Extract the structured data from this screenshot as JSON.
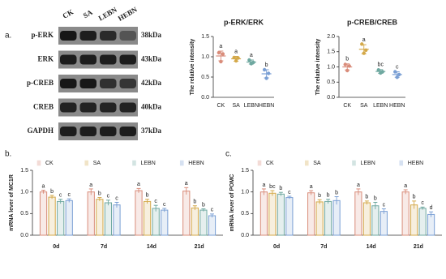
{
  "panel_a": {
    "label": "a.",
    "lanes": [
      "CK",
      "SA",
      "LEBN",
      "HEBN"
    ],
    "rows": [
      {
        "protein": "p-ERK",
        "size": "38kDa"
      },
      {
        "protein": "ERK",
        "size": "43kDa"
      },
      {
        "protein": "p-CREB",
        "size": "42kDa"
      },
      {
        "protein": "CREB",
        "size": "40kDa"
      },
      {
        "protein": "GAPDH",
        "size": "37kDa"
      }
    ]
  },
  "chart_data": [
    {
      "type": "dot",
      "title": "p-ERK/ERK",
      "y_label": "The relative intensity",
      "categories": [
        "CK",
        "SA",
        "LEBN",
        "HEBN"
      ],
      "colors": [
        "#d98c7a",
        "#d4a94a",
        "#6fa8a0",
        "#7a9fd4"
      ],
      "values": [
        1.02,
        0.95,
        0.87,
        0.58
      ],
      "errors": [
        0.12,
        0.06,
        0.05,
        0.1
      ],
      "points": [
        [
          1.1,
          0.88,
          1.07
        ],
        [
          0.98,
          0.9,
          0.97
        ],
        [
          0.92,
          0.83,
          0.86
        ],
        [
          0.68,
          0.47,
          0.59
        ]
      ],
      "letters": [
        "a",
        "a",
        "a",
        "b"
      ],
      "ylim": [
        0,
        1.5
      ],
      "yticks": [
        {
          "value": 0,
          "label": "0.0"
        },
        {
          "value": 0.5,
          "label": "0.5"
        },
        {
          "value": 1,
          "label": "1.0"
        },
        {
          "value": 1.5,
          "label": "1.5"
        }
      ]
    },
    {
      "type": "dot",
      "title": "p-CREB/CREB",
      "y_label": "The relative intensity",
      "categories": [
        "CK",
        "SA",
        "LEBN",
        "HEBN"
      ],
      "colors": [
        "#d98c7a",
        "#d4a94a",
        "#6fa8a0",
        "#7a9fd4"
      ],
      "values": [
        1.0,
        1.58,
        0.85,
        0.75
      ],
      "errors": [
        0.1,
        0.15,
        0.06,
        0.09
      ],
      "points": [
        [
          1.08,
          0.88,
          1.03
        ],
        [
          1.75,
          1.45,
          1.55
        ],
        [
          0.9,
          0.8,
          0.84
        ],
        [
          0.84,
          0.66,
          0.75
        ]
      ],
      "letters": [
        "b",
        "a",
        "bc",
        "c"
      ],
      "ylim": [
        0,
        2
      ],
      "yticks": [
        {
          "value": 0,
          "label": "0.0"
        },
        {
          "value": 0.5,
          "label": "0.5"
        },
        {
          "value": 1,
          "label": "1.0"
        },
        {
          "value": 1.5,
          "label": "1.5"
        },
        {
          "value": 2,
          "label": "2.0"
        }
      ]
    },
    {
      "type": "bar",
      "panel_label": "b.",
      "y_label": "mRNA lever of MC1R",
      "categories": [
        "0d",
        "7d",
        "14d",
        "21d"
      ],
      "series": [
        {
          "name": "CK",
          "color": "#d98c7a",
          "values": [
            1.0,
            1.0,
            1.03,
            1.02
          ],
          "errors": [
            0.04,
            0.07,
            0.05,
            0.08
          ],
          "letters": [
            "a",
            "a",
            "a",
            "a"
          ]
        },
        {
          "name": "SA",
          "color": "#d4a94a",
          "values": [
            0.88,
            0.83,
            0.78,
            0.63
          ],
          "errors": [
            0.04,
            0.04,
            0.05,
            0.05
          ],
          "letters": [
            "b",
            "b",
            "b",
            "b"
          ]
        },
        {
          "name": "LEBN",
          "color": "#6fa8a0",
          "values": [
            0.78,
            0.75,
            0.62,
            0.58
          ],
          "errors": [
            0.05,
            0.06,
            0.07,
            0.03
          ],
          "letters": [
            "c",
            "c",
            "c",
            "b"
          ]
        },
        {
          "name": "HEBN",
          "color": "#7a9fd4",
          "values": [
            0.8,
            0.7,
            0.58,
            0.45
          ],
          "errors": [
            0.04,
            0.06,
            0.04,
            0.04
          ],
          "letters": [
            "c",
            "c",
            "c",
            "c"
          ]
        }
      ],
      "ylim": [
        0,
        1.5
      ],
      "yticks": [
        {
          "value": 0,
          "label": "0.0"
        },
        {
          "value": 0.5,
          "label": "0.5"
        },
        {
          "value": 1,
          "label": "1.0"
        },
        {
          "value": 1.5,
          "label": "1.5"
        }
      ]
    },
    {
      "type": "bar",
      "panel_label": "c.",
      "y_label": "mRNA lever of POMC",
      "categories": [
        "0d",
        "7d",
        "14d",
        "21d"
      ],
      "series": [
        {
          "name": "CK",
          "color": "#d98c7a",
          "values": [
            1.0,
            0.98,
            1.0,
            1.0
          ],
          "errors": [
            0.07,
            0.05,
            0.07,
            0.05
          ],
          "letters": [
            "a",
            "a",
            "a",
            "a"
          ]
        },
        {
          "name": "SA",
          "color": "#d4a94a",
          "values": [
            0.97,
            0.77,
            0.75,
            0.7
          ],
          "errors": [
            0.06,
            0.05,
            0.04,
            0.09
          ],
          "letters": [
            "bc",
            "b",
            "b",
            "b"
          ]
        },
        {
          "name": "LEBN",
          "color": "#6fa8a0",
          "values": [
            0.95,
            0.78,
            0.68,
            0.62
          ],
          "errors": [
            0.04,
            0.05,
            0.08,
            0.03
          ],
          "letters": [
            "b",
            "b",
            "b",
            "c"
          ]
        },
        {
          "name": "HEBN",
          "color": "#7a9fd4",
          "values": [
            0.87,
            0.8,
            0.55,
            0.48
          ],
          "errors": [
            0.03,
            0.09,
            0.06,
            0.06
          ],
          "letters": [
            "c",
            "b",
            "c",
            "d"
          ]
        }
      ],
      "ylim": [
        0,
        1.5
      ],
      "yticks": [
        {
          "value": 0,
          "label": "0.0"
        },
        {
          "value": 0.5,
          "label": "0.5"
        },
        {
          "value": 1,
          "label": "1.0"
        },
        {
          "value": 1.5,
          "label": "1.5"
        }
      ]
    }
  ]
}
